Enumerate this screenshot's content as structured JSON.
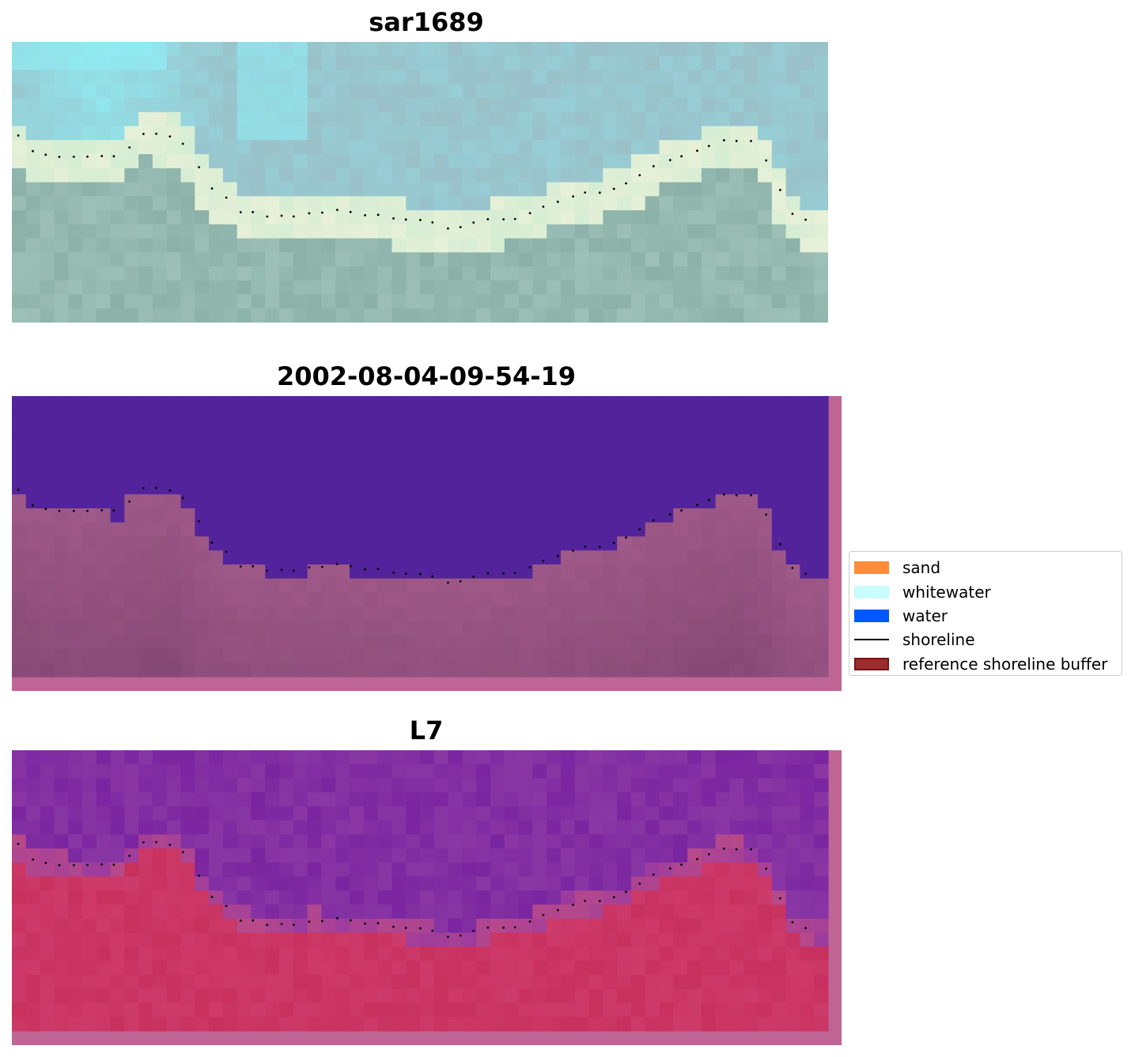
{
  "panels": [
    {
      "title": "sar1689",
      "kind": "rgb"
    },
    {
      "title": "2002-08-04-09-54-19",
      "kind": "classification"
    },
    {
      "title": "L7",
      "kind": "index"
    }
  ],
  "legend": {
    "items": [
      {
        "label": "sand",
        "type": "patch",
        "color": "#ff8c3a",
        "edge": "#ff8c3a"
      },
      {
        "label": "whitewater",
        "type": "patch",
        "color": "#c8fdfb",
        "edge": "#c8fdfb"
      },
      {
        "label": "water",
        "type": "patch",
        "color": "#0059ff",
        "edge": "#0059ff"
      },
      {
        "label": "shoreline",
        "type": "line",
        "color": "#000000",
        "edge": "#000000"
      },
      {
        "label": "reference shoreline buffer",
        "type": "patch",
        "color": "#9b2d2d",
        "edge": "#7a1414"
      }
    ]
  },
  "colors": {
    "rgb_sky": "#9ac0c8",
    "rgb_highlight": "#8ef4fb",
    "rgb_beach": "#e8f0d8",
    "rgb_land": "#8ab0a8",
    "class_water": "#52239a",
    "class_land": "#a05a8a",
    "buffer_strip": "#bf6596",
    "index_water": "#7a25a0",
    "index_land": "#c8305e"
  }
}
